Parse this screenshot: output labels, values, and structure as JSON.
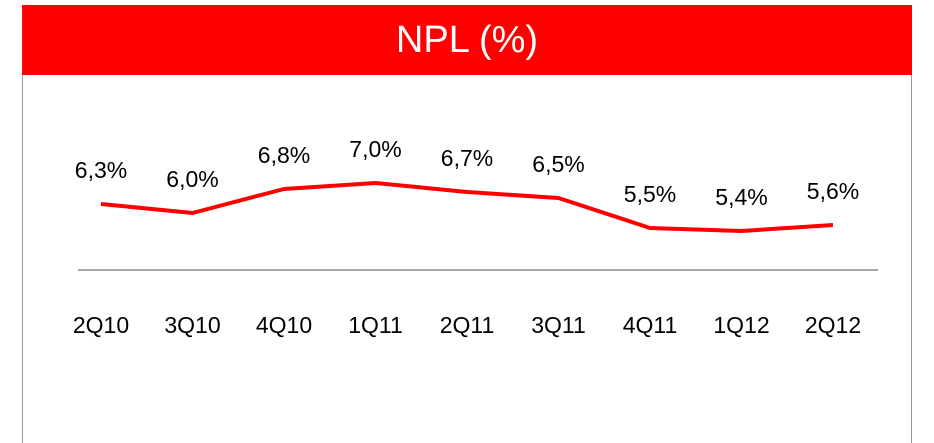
{
  "chart_data": {
    "type": "line",
    "title": "NPL (%)",
    "categories": [
      "2Q10",
      "3Q10",
      "4Q10",
      "1Q11",
      "2Q11",
      "3Q11",
      "4Q11",
      "1Q12",
      "2Q12"
    ],
    "values": [
      6.3,
      6.0,
      6.8,
      7.0,
      6.7,
      6.5,
      5.5,
      5.4,
      5.6
    ],
    "value_labels": [
      "6,3%",
      "6,0%",
      "6,8%",
      "7,0%",
      "6,7%",
      "6,5%",
      "5,5%",
      "5,4%",
      "5,6%"
    ],
    "color": "#ff0000"
  }
}
